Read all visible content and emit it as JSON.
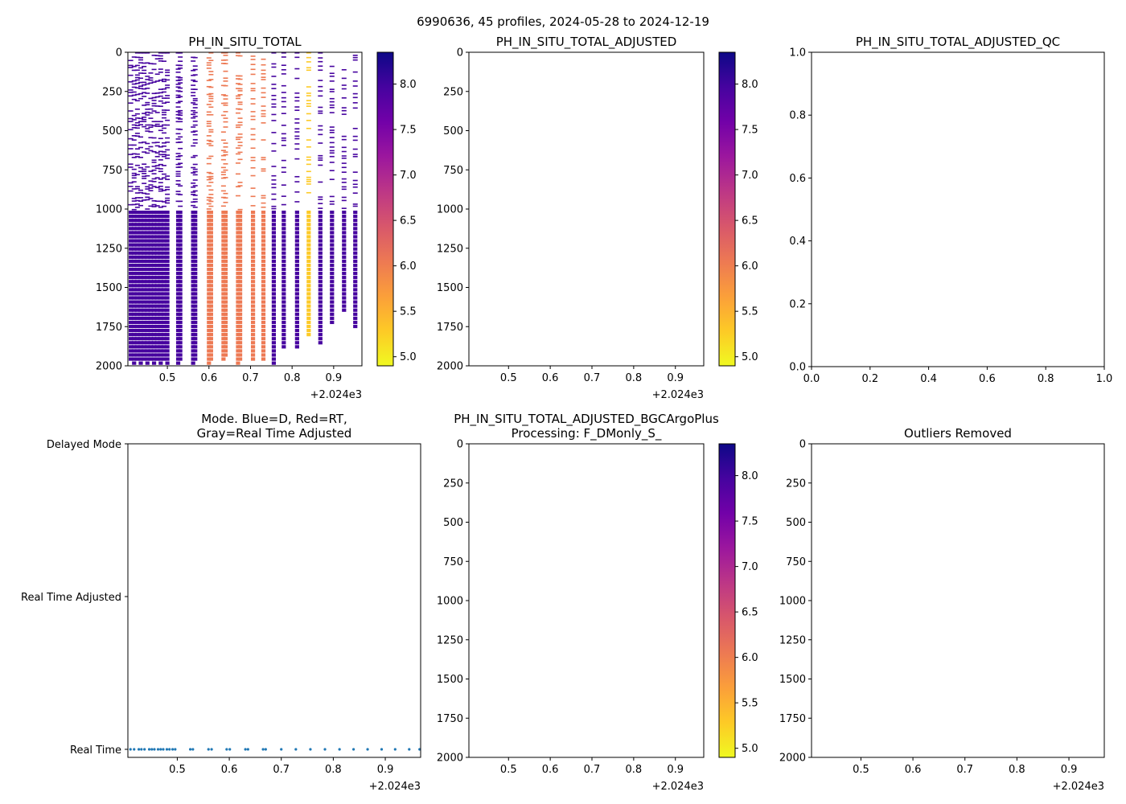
{
  "figure": {
    "suptitle": "6990636, 45 profiles, 2024-05-28 to 2024-12-19"
  },
  "colors": {
    "colormap": [
      "#f0f921",
      "#fdca26",
      "#fb9f3a",
      "#ed7953",
      "#d8576b",
      "#bd3786",
      "#9c179e",
      "#7201a8",
      "#46039f",
      "#0d0887"
    ],
    "mode_points": "#1f77b4",
    "axis": "#000000"
  },
  "chart_data": [
    {
      "id": "ph_total",
      "type": "heatmap",
      "title": "PH_IN_SITU_TOTAL",
      "x_tick_labels": [
        "0.5",
        "0.6",
        "0.7",
        "0.8",
        "0.9"
      ],
      "x_offset_label": "+2.024e3",
      "y_tick_labels": [
        "0",
        "250",
        "500",
        "750",
        "1000",
        "1250",
        "1500",
        "1750",
        "2000"
      ],
      "ylim": [
        2000,
        0
      ],
      "xlim": [
        0.405,
        0.968
      ],
      "colorbar": {
        "range": [
          4.9,
          8.35
        ],
        "tick_labels": [
          "5.0",
          "5.5",
          "6.0",
          "6.5",
          "7.0",
          "7.5",
          "8.0"
        ]
      },
      "profiles": [
        {
          "x": 0.412,
          "v": 7.8,
          "max": 1950
        },
        {
          "x": 0.42,
          "v": 7.9,
          "max": 1990
        },
        {
          "x": 0.428,
          "v": 7.9,
          "max": 1950
        },
        {
          "x": 0.436,
          "v": 7.9,
          "max": 1990
        },
        {
          "x": 0.444,
          "v": 7.9,
          "max": 1960
        },
        {
          "x": 0.452,
          "v": 7.9,
          "max": 1990
        },
        {
          "x": 0.46,
          "v": 7.9,
          "max": 1960
        },
        {
          "x": 0.468,
          "v": 7.9,
          "max": 1990
        },
        {
          "x": 0.476,
          "v": 7.9,
          "max": 1960
        },
        {
          "x": 0.484,
          "v": 7.9,
          "max": 1990
        },
        {
          "x": 0.492,
          "v": 7.9,
          "max": 1960
        },
        {
          "x": 0.5,
          "v": 7.9,
          "max": 1990
        },
        {
          "x": 0.526,
          "v": 7.9,
          "max": 1990
        },
        {
          "x": 0.531,
          "v": 7.9,
          "max": 1960
        },
        {
          "x": 0.562,
          "v": 7.9,
          "max": 1990
        },
        {
          "x": 0.567,
          "v": 7.9,
          "max": 1960
        },
        {
          "x": 0.6,
          "v": 6.2,
          "max": 1990
        },
        {
          "x": 0.605,
          "v": 6.2,
          "max": 1960
        },
        {
          "x": 0.635,
          "v": 6.0,
          "max": 1970
        },
        {
          "x": 0.64,
          "v": 6.0,
          "max": 1940
        },
        {
          "x": 0.67,
          "v": 5.9,
          "max": 1980
        },
        {
          "x": 0.675,
          "v": 5.9,
          "max": 1950
        },
        {
          "x": 0.706,
          "v": 5.9,
          "max": 1970
        },
        {
          "x": 0.731,
          "v": 5.9,
          "max": 1950
        },
        {
          "x": 0.756,
          "v": 7.9,
          "max": 1990
        },
        {
          "x": 0.78,
          "v": 7.9,
          "max": 1880
        },
        {
          "x": 0.812,
          "v": 7.9,
          "max": 1870
        },
        {
          "x": 0.84,
          "v": 5.3,
          "max": 1800
        },
        {
          "x": 0.868,
          "v": 7.9,
          "max": 1850
        },
        {
          "x": 0.896,
          "v": 7.9,
          "max": 1720
        },
        {
          "x": 0.925,
          "v": 7.9,
          "max": 1660
        },
        {
          "x": 0.952,
          "v": 7.9,
          "max": 1760
        }
      ]
    },
    {
      "id": "ph_adjusted",
      "type": "heatmap",
      "title": "PH_IN_SITU_TOTAL_ADJUSTED",
      "x_tick_labels": [
        "0.5",
        "0.6",
        "0.7",
        "0.8",
        "0.9"
      ],
      "x_offset_label": "+2.024e3",
      "y_tick_labels": [
        "0",
        "250",
        "500",
        "750",
        "1000",
        "1250",
        "1500",
        "1750",
        "2000"
      ],
      "ylim": [
        2000,
        0
      ],
      "xlim": [
        0.405,
        0.968
      ],
      "colorbar": {
        "range": [
          4.9,
          8.35
        ],
        "tick_labels": [
          "5.0",
          "5.5",
          "6.0",
          "6.5",
          "7.0",
          "7.5",
          "8.0"
        ]
      },
      "profiles": []
    },
    {
      "id": "ph_adjusted_qc",
      "type": "scatter",
      "title": "PH_IN_SITU_TOTAL_ADJUSTED_QC",
      "x_tick_labels": [
        "0.0",
        "0.2",
        "0.4",
        "0.6",
        "0.8",
        "1.0"
      ],
      "y_tick_labels": [
        "0.0",
        "0.2",
        "0.4",
        "0.6",
        "0.8",
        "1.0"
      ],
      "xlim": [
        0,
        1
      ],
      "ylim": [
        0,
        1
      ]
    },
    {
      "id": "mode",
      "type": "scatter",
      "title_line1": "Mode. Blue=D, Red=RT,",
      "title_line2": "Gray=Real Time Adjusted",
      "y_tick_labels": [
        "Delayed Mode",
        "Real Time Adjusted",
        "Real Time"
      ],
      "x_tick_labels": [
        "0.5",
        "0.6",
        "0.7",
        "0.8",
        "0.9"
      ],
      "x_offset_label": "+2.024e3",
      "xlim": [
        0.405,
        0.968
      ],
      "points_x": [
        0.41,
        0.417,
        0.426,
        0.431,
        0.437,
        0.446,
        0.451,
        0.456,
        0.463,
        0.468,
        0.473,
        0.48,
        0.485,
        0.491,
        0.496,
        0.525,
        0.53,
        0.56,
        0.566,
        0.595,
        0.601,
        0.631,
        0.636,
        0.665,
        0.67,
        0.7,
        0.728,
        0.756,
        0.784,
        0.812,
        0.839,
        0.866,
        0.893,
        0.919,
        0.946,
        0.966
      ],
      "points_mode": "Real Time"
    },
    {
      "id": "ph_bgcargoplus",
      "type": "heatmap",
      "title_line1": "PH_IN_SITU_TOTAL_ADJUSTED_BGCArgoPlus",
      "title_line2": "Processing: F_DMonly_S_",
      "x_tick_labels": [
        "0.5",
        "0.6",
        "0.7",
        "0.8",
        "0.9"
      ],
      "x_offset_label": "+2.024e3",
      "y_tick_labels": [
        "0",
        "250",
        "500",
        "750",
        "1000",
        "1250",
        "1500",
        "1750",
        "2000"
      ],
      "ylim": [
        2000,
        0
      ],
      "xlim": [
        0.405,
        0.968
      ],
      "colorbar": {
        "range": [
          4.9,
          8.35
        ],
        "tick_labels": [
          "5.0",
          "5.5",
          "6.0",
          "6.5",
          "7.0",
          "7.5",
          "8.0"
        ]
      },
      "profiles": []
    },
    {
      "id": "outliers",
      "type": "scatter",
      "title": "Outliers Removed",
      "x_tick_labels": [
        "0.5",
        "0.6",
        "0.7",
        "0.8",
        "0.9"
      ],
      "x_offset_label": "+2.024e3",
      "y_tick_labels": [
        "0",
        "250",
        "500",
        "750",
        "1000",
        "1250",
        "1500",
        "1750",
        "2000"
      ],
      "ylim": [
        2000,
        0
      ],
      "xlim": [
        0.405,
        0.968
      ]
    }
  ]
}
